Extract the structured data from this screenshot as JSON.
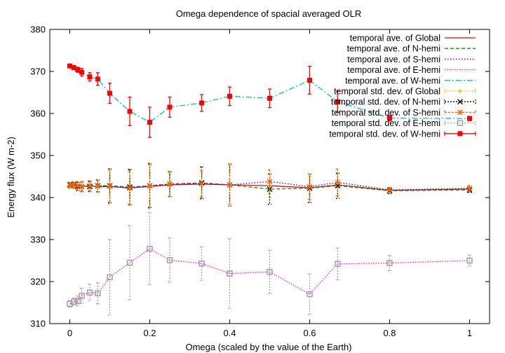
{
  "chart_data": {
    "type": "line",
    "title": "Omega dependence of spacial averaged OLR",
    "xlabel": "Omega (scaled by the value of the Earth)",
    "ylabel": "Energy flux (W m-2)",
    "xlim": [
      -0.05,
      1.05
    ],
    "ylim": [
      310,
      380
    ],
    "xticks": [
      0,
      0.2,
      0.4,
      0.6,
      0.8,
      1
    ],
    "xtick_labels": [
      "0",
      "0.2",
      "0.4",
      "0.6",
      "0.8",
      "1"
    ],
    "yticks": [
      310,
      320,
      330,
      340,
      350,
      360,
      370,
      380
    ],
    "ytick_labels": [
      "310",
      "320",
      "330",
      "340",
      "350",
      "360",
      "370",
      "380"
    ],
    "grid": false,
    "legend_position": "top-right",
    "x": [
      0,
      0.01,
      0.02,
      0.03,
      0.05,
      0.07,
      0.1,
      0.15,
      0.2,
      0.25,
      0.33,
      0.4,
      0.5,
      0.6,
      0.67,
      0.8,
      1
    ],
    "series": [
      {
        "name": "temporal ave. of Global",
        "color": "#ff0000",
        "dash": "",
        "kind": "line",
        "values": [
          342.8,
          342.8,
          342.8,
          342.6,
          342.8,
          342.6,
          342.6,
          342.3,
          342.6,
          343.0,
          343.2,
          343.0,
          342.8,
          342.3,
          343.0,
          341.7,
          342.0
        ]
      },
      {
        "name": "temporal ave. of N-hemi",
        "color": "#00a000",
        "dash": "5,3",
        "kind": "line",
        "values": [
          343.0,
          343.0,
          342.6,
          342.6,
          342.6,
          342.8,
          342.8,
          342.5,
          342.8,
          343.2,
          343.5,
          343.0,
          342.0,
          342.2,
          342.8,
          341.6,
          341.8
        ]
      },
      {
        "name": "temporal ave. of S-hemi",
        "color": "#0000ff",
        "dash": "1.5,2.5",
        "kind": "line",
        "values": [
          342.9,
          342.9,
          342.8,
          342.6,
          342.8,
          342.7,
          342.7,
          342.2,
          342.8,
          343.2,
          343.3,
          343.0,
          343.8,
          342.6,
          343.6,
          341.8,
          342.2
        ]
      },
      {
        "name": "temporal ave. of E-hemi",
        "color": "#ff00ff",
        "dash": "1.5,2",
        "kind": "line",
        "values": [
          314.7,
          315.2,
          315.4,
          316.6,
          317.4,
          317.2,
          321.0,
          324.5,
          327.8,
          325.1,
          324.3,
          321.9,
          322.3,
          317.0,
          324.2,
          324.4,
          325.0
        ]
      },
      {
        "name": "temporal ave. of W-hemi",
        "color": "#00c0c0",
        "dash": "8,3,2,3",
        "kind": "line",
        "values": [
          371.3,
          370.9,
          370.4,
          369.8,
          368.7,
          368.2,
          364.8,
          360.5,
          357.9,
          361.5,
          362.5,
          364.1,
          363.6,
          367.9,
          362.8,
          358.9,
          358.8
        ]
      },
      {
        "name": "temporal std. dev. of Global",
        "color": "#c8c800",
        "dash": "1.5,2",
        "kind": "errorbar",
        "marker": "plus",
        "values": [
          342.8,
          342.8,
          342.8,
          342.6,
          342.8,
          342.6,
          342.6,
          342.3,
          342.6,
          343.0,
          343.2,
          343.0,
          342.8,
          342.3,
          343.0,
          341.7,
          342.0
        ],
        "errors": [
          0.6,
          0.6,
          0.8,
          1.0,
          1.2,
          1.4,
          3.8,
          4.2,
          5.0,
          2.8,
          3.0,
          4.6,
          2.8,
          2.8,
          2.6,
          0.5,
          0.5
        ]
      },
      {
        "name": "temporal std. dev. of N-hemi",
        "color": "#000000",
        "dash": "2,2",
        "kind": "errorbar",
        "marker": "cross",
        "values": [
          343.0,
          343.0,
          342.6,
          342.6,
          342.6,
          342.8,
          342.8,
          342.5,
          342.8,
          343.2,
          343.5,
          343.0,
          342.0,
          342.2,
          342.8,
          341.6,
          341.8
        ],
        "errors": [
          0.6,
          0.7,
          1.0,
          1.2,
          1.2,
          1.4,
          4.0,
          4.2,
          5.2,
          3.0,
          3.8,
          5.0,
          3.6,
          3.4,
          3.0,
          0.7,
          0.6
        ]
      },
      {
        "name": "temporal std. dev. of S-hemi",
        "color": "#ff6000",
        "dash": "3,2",
        "kind": "errorbar",
        "marker": "star",
        "values": [
          342.9,
          342.9,
          342.8,
          342.6,
          342.8,
          342.7,
          342.7,
          342.2,
          342.8,
          343.2,
          343.3,
          343.0,
          343.8,
          342.6,
          343.6,
          341.8,
          342.2
        ],
        "errors": [
          0.6,
          0.7,
          1.0,
          1.2,
          1.2,
          1.4,
          4.2,
          4.0,
          5.4,
          2.9,
          3.2,
          5.0,
          2.8,
          3.0,
          3.2,
          0.6,
          0.7
        ]
      },
      {
        "name": "temporal std. dev. of E-hemi",
        "color": "#a0a0a0",
        "dash": "2,2",
        "kind": "errorbar",
        "marker": "square",
        "values": [
          314.7,
          315.2,
          315.4,
          316.6,
          317.4,
          317.2,
          321.0,
          324.5,
          327.8,
          325.1,
          324.3,
          321.9,
          322.3,
          317.0,
          324.2,
          324.4,
          325.0
        ],
        "errors": [
          0.8,
          0.9,
          1.2,
          1.8,
          2.0,
          2.5,
          9.0,
          8.8,
          8.6,
          5.3,
          4.0,
          8.3,
          5.2,
          4.8,
          3.8,
          1.8,
          1.3
        ]
      },
      {
        "name": "temporal std. dev. of W-hemi",
        "color": "#ff0000",
        "dash": "",
        "kind": "errorbar",
        "marker": "filled-square",
        "values": [
          371.3,
          370.9,
          370.4,
          369.8,
          368.7,
          368.2,
          364.8,
          360.5,
          357.9,
          361.5,
          362.5,
          364.1,
          363.6,
          367.9,
          362.8,
          358.9,
          358.8
        ],
        "errors": [
          0.4,
          0.5,
          0.6,
          0.9,
          1.0,
          1.5,
          2.4,
          3.4,
          3.6,
          2.4,
          2.0,
          2.2,
          2.2,
          3.3,
          2.5,
          0.6,
          0.5
        ]
      }
    ]
  }
}
